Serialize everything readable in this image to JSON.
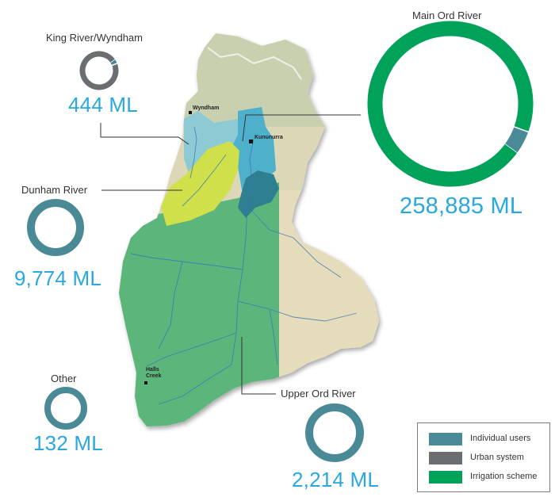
{
  "colors": {
    "individual_users": "#4a8a96",
    "urban_system": "#6b6e70",
    "irrigation_scheme": "#00a25a",
    "value_text": "#29a8e0"
  },
  "places": {
    "wyndham": "Wyndham",
    "kununurra": "Kununurra",
    "halls_creek": "Halls Creek"
  },
  "catchments": {
    "king_river": {
      "name": "King River/Wyndham",
      "volume": "444 ML",
      "shares": {
        "individual_users": 0.04,
        "urban_system": 0.96,
        "irrigation_scheme": 0
      }
    },
    "main_ord": {
      "name": "Main Ord River",
      "volume": "258,885 ML",
      "shares": {
        "individual_users": 0.045,
        "urban_system": 0,
        "irrigation_scheme": 0.955
      }
    },
    "dunham": {
      "name": "Dunham River",
      "volume": "9,774 ML",
      "shares": {
        "individual_users": 1,
        "urban_system": 0,
        "irrigation_scheme": 0
      }
    },
    "upper_ord": {
      "name": "Upper Ord River",
      "volume": "2,214 ML",
      "shares": {
        "individual_users": 1,
        "urban_system": 0,
        "irrigation_scheme": 0
      }
    },
    "other": {
      "name": "Other",
      "volume": "132 ML",
      "shares": {
        "individual_users": 1,
        "urban_system": 0,
        "irrigation_scheme": 0
      }
    }
  },
  "legend": [
    {
      "key": "individual_users",
      "label": "Individual users"
    },
    {
      "key": "urban_system",
      "label": "Urban system"
    },
    {
      "key": "irrigation_scheme",
      "label": "Irrigation scheme"
    }
  ]
}
